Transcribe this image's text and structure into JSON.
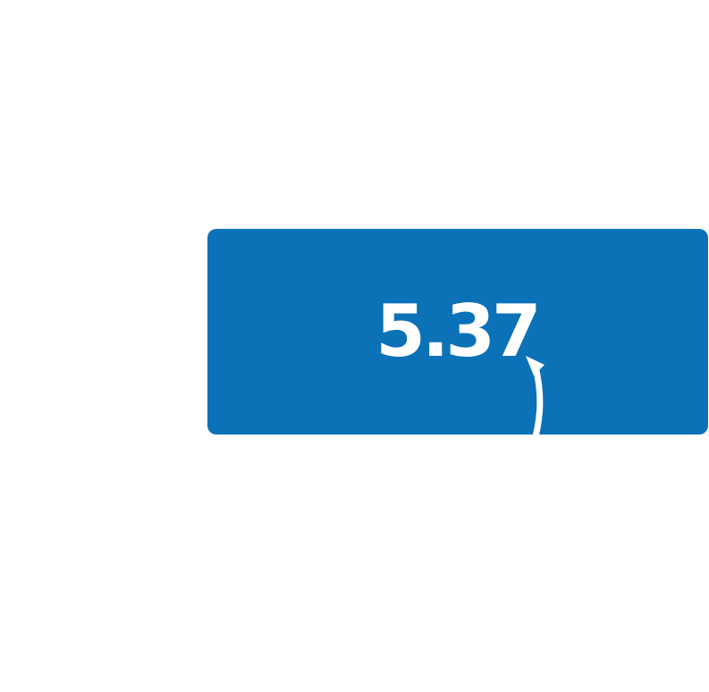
{
  "card": {
    "value": "5.37",
    "background_color": "#0b72b8",
    "text_color": "#ffffff"
  },
  "icons": {
    "arrow": "curved-up-arrow-icon"
  }
}
